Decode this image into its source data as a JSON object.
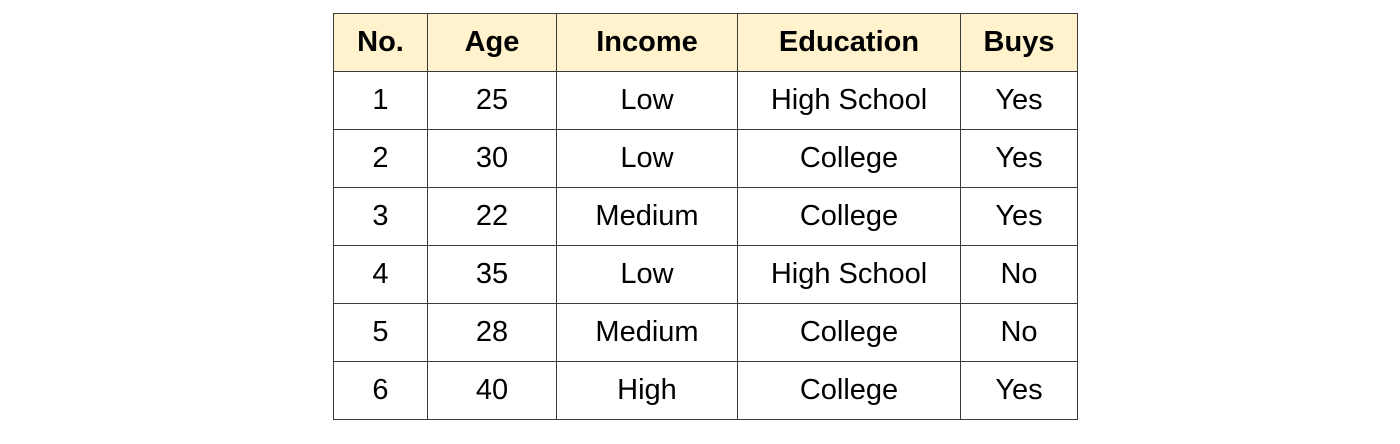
{
  "table": {
    "header_bg": "#fff2cc",
    "border_color": "#3a3a3a",
    "columns": [
      "No.",
      "Age",
      "Income",
      "Education",
      "Buys"
    ],
    "rows": [
      [
        "1",
        "25",
        "Low",
        "High School",
        "Yes"
      ],
      [
        "2",
        "30",
        "Low",
        "College",
        "Yes"
      ],
      [
        "3",
        "22",
        "Medium",
        "College",
        "Yes"
      ],
      [
        "4",
        "35",
        "Low",
        "High School",
        "No"
      ],
      [
        "5",
        "28",
        "Medium",
        "College",
        "No"
      ],
      [
        "6",
        "40",
        "High",
        "College",
        "Yes"
      ]
    ]
  }
}
